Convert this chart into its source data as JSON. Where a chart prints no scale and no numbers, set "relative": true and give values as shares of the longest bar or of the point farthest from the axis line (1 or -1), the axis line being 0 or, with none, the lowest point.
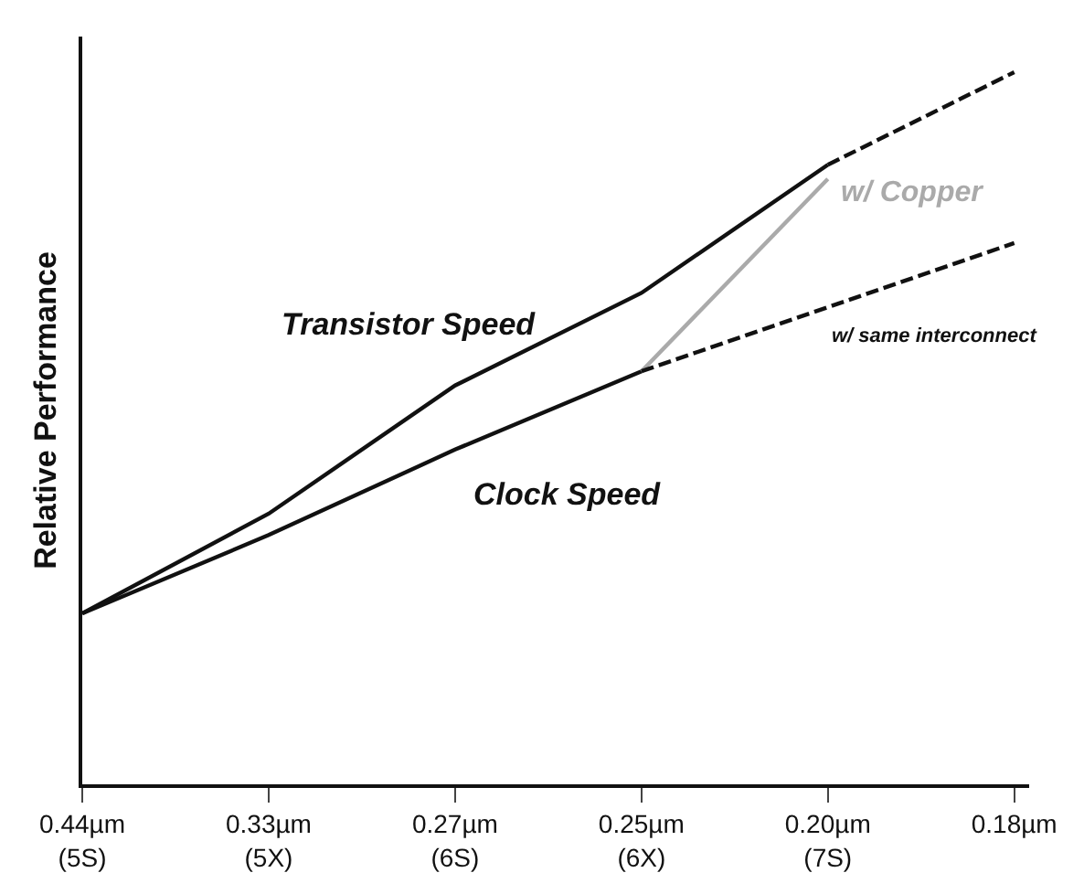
{
  "chart_data": {
    "type": "line",
    "relative": true,
    "ylabel": "Relative Performance",
    "categories": [
      "0.44µm\n(5S)",
      "0.33µm\n(5X)",
      "0.27µm\n(6S)",
      "0.25µm\n(6X)",
      "0.20µm\n(7S)",
      "0.18µm"
    ],
    "series": [
      {
        "name": "Transistor Speed",
        "color": "#111111",
        "line_style": "solid",
        "values": [
          0.24,
          0.38,
          0.56,
          0.69,
          0.87,
          null
        ]
      },
      {
        "color": "#111111",
        "line_style": "dashed",
        "values": [
          null,
          null,
          null,
          null,
          0.87,
          1.0
        ]
      },
      {
        "name": "Clock Speed",
        "color": "#111111",
        "line_style": "solid",
        "values": [
          0.24,
          0.35,
          0.47,
          0.58,
          null,
          null
        ]
      },
      {
        "name": "w/ Copper",
        "color": "#aaaaaa",
        "line_style": "solid",
        "values": [
          null,
          null,
          null,
          0.58,
          0.85,
          null
        ]
      },
      {
        "name": "w/ same interconnect",
        "color": "#111111",
        "line_style": "dashed",
        "values": [
          null,
          null,
          null,
          0.58,
          0.67,
          0.76
        ]
      }
    ],
    "legend": false,
    "marker": "none"
  }
}
